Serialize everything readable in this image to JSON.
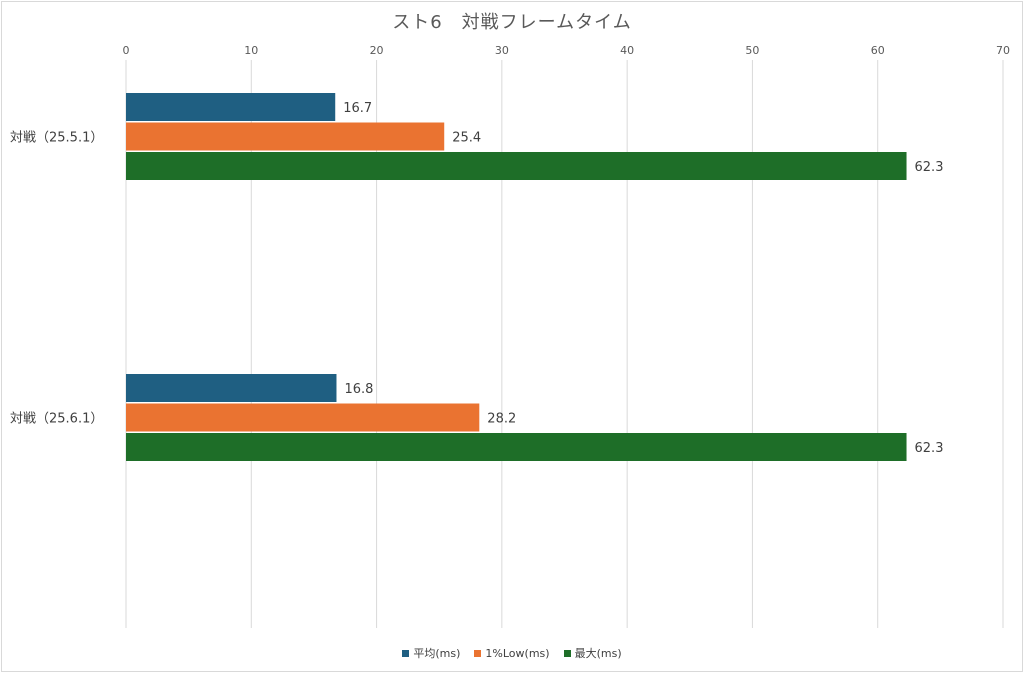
{
  "chart_data": {
    "type": "bar",
    "orientation": "horizontal",
    "title": "スト6　対戦フレームタイム",
    "categories": [
      "対戦（25.5.1）",
      "対戦（25.6.1）"
    ],
    "series": [
      {
        "name": "平均(ms)",
        "color": "#1f5f82",
        "values": [
          16.7,
          16.8
        ]
      },
      {
        "name": "1%Low(ms)",
        "color": "#ea7331",
        "values": [
          25.4,
          28.2
        ]
      },
      {
        "name": "最大(ms)",
        "color": "#1e6e28",
        "values": [
          62.3,
          62.3
        ]
      }
    ],
    "xlim": [
      0,
      70
    ],
    "xticks": [
      "0",
      "10",
      "20",
      "30",
      "40",
      "50",
      "60",
      "70"
    ],
    "x_axis_position": "top",
    "grid": true,
    "legend_position": "bottom"
  }
}
